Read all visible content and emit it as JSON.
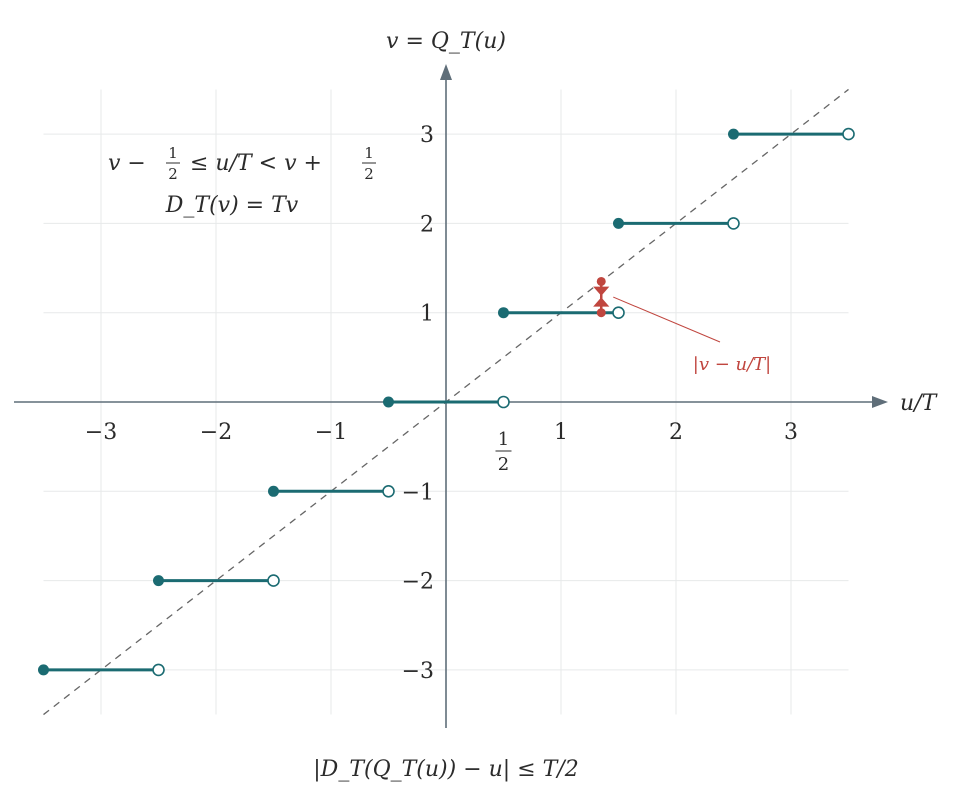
{
  "chart_data": {
    "type": "line",
    "subtype": "step-function",
    "y_axis_label": "v = Q_T(u)",
    "x_axis_label": "u/T",
    "xlim": [
      -3.5,
      3.5
    ],
    "ylim": [
      -3.5,
      3.5
    ],
    "x_ticks": [
      -3,
      -2,
      -1,
      1,
      2,
      3
    ],
    "x_tick_labels": [
      "−3",
      "−2",
      "−1",
      "1",
      "2",
      "3"
    ],
    "half_tick": {
      "value": 0.5,
      "numerator": "1",
      "denominator": "2"
    },
    "y_ticks": [
      -3,
      -2,
      -1,
      1,
      2,
      3
    ],
    "y_tick_labels": [
      "−3",
      "−2",
      "−1",
      "1",
      "2",
      "3"
    ],
    "grid": true,
    "steps": [
      {
        "v": -3,
        "x_start": -3.5,
        "x_end": -2.5
      },
      {
        "v": -2,
        "x_start": -2.5,
        "x_end": -1.5
      },
      {
        "v": -1,
        "x_start": -1.5,
        "x_end": -0.5
      },
      {
        "v": 0,
        "x_start": -0.5,
        "x_end": 0.5
      },
      {
        "v": 1,
        "x_start": 0.5,
        "x_end": 1.5
      },
      {
        "v": 2,
        "x_start": 1.5,
        "x_end": 2.5
      },
      {
        "v": 3,
        "x_start": 2.5,
        "x_end": 3.5
      }
    ],
    "identity_line": {
      "x": [
        -3.5,
        3.5
      ],
      "y": [
        -3.5,
        3.5
      ],
      "style": "dashed"
    },
    "error_marker": {
      "x": 1.35,
      "y_low": 1.0,
      "y_high": 1.35,
      "label": "|v − u/T|"
    },
    "annotation_top_left": {
      "line1_left": "v −",
      "line1_mid": "≤ u/T < v +",
      "frac_numerator": "1",
      "frac_denominator": "2",
      "line2": "D_T(v) = Tv"
    },
    "bottom_caption": "|D_T(Q_T(u)) − u| ≤ T/2"
  },
  "colors": {
    "step": "#1b6b72",
    "error": "#c0463f",
    "axis": "#5f6e79"
  }
}
